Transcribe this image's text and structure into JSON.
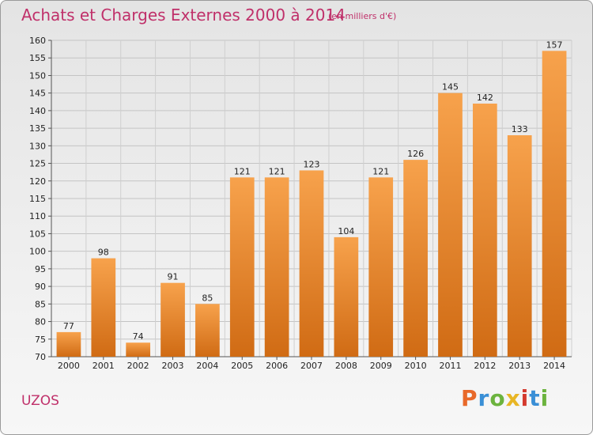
{
  "header": {
    "title": "Achats et Charges Externes 2000 à 2014",
    "unit": "(en milliers d'€)"
  },
  "footer": {
    "region": "UZOS",
    "logo": "Proxiti",
    "logo_colors": [
      "#e8692a",
      "#3a8fd6",
      "#6cb33e",
      "#e8b625",
      "#d43a2f",
      "#3a8fd6",
      "#6cb33e"
    ]
  },
  "colors": {
    "title": "#c0306a",
    "bar_top": "#f7a24c",
    "bar_bottom": "#d06b14"
  },
  "chart_data": {
    "type": "bar",
    "title": "Achats et Charges Externes 2000 à 2014",
    "subtitle": "(en milliers d'€)",
    "categories": [
      "2000",
      "2001",
      "2002",
      "2003",
      "2004",
      "2005",
      "2006",
      "2007",
      "2008",
      "2009",
      "2010",
      "2011",
      "2012",
      "2013",
      "2014"
    ],
    "values": [
      77,
      98,
      74,
      91,
      85,
      121,
      121,
      123,
      104,
      121,
      126,
      145,
      142,
      133,
      157
    ],
    "ylim": [
      70,
      160
    ],
    "yticks": [
      70,
      75,
      80,
      85,
      90,
      95,
      100,
      105,
      110,
      115,
      120,
      125,
      130,
      135,
      140,
      145,
      150,
      155,
      160
    ],
    "grid": true,
    "data_labels": true
  }
}
